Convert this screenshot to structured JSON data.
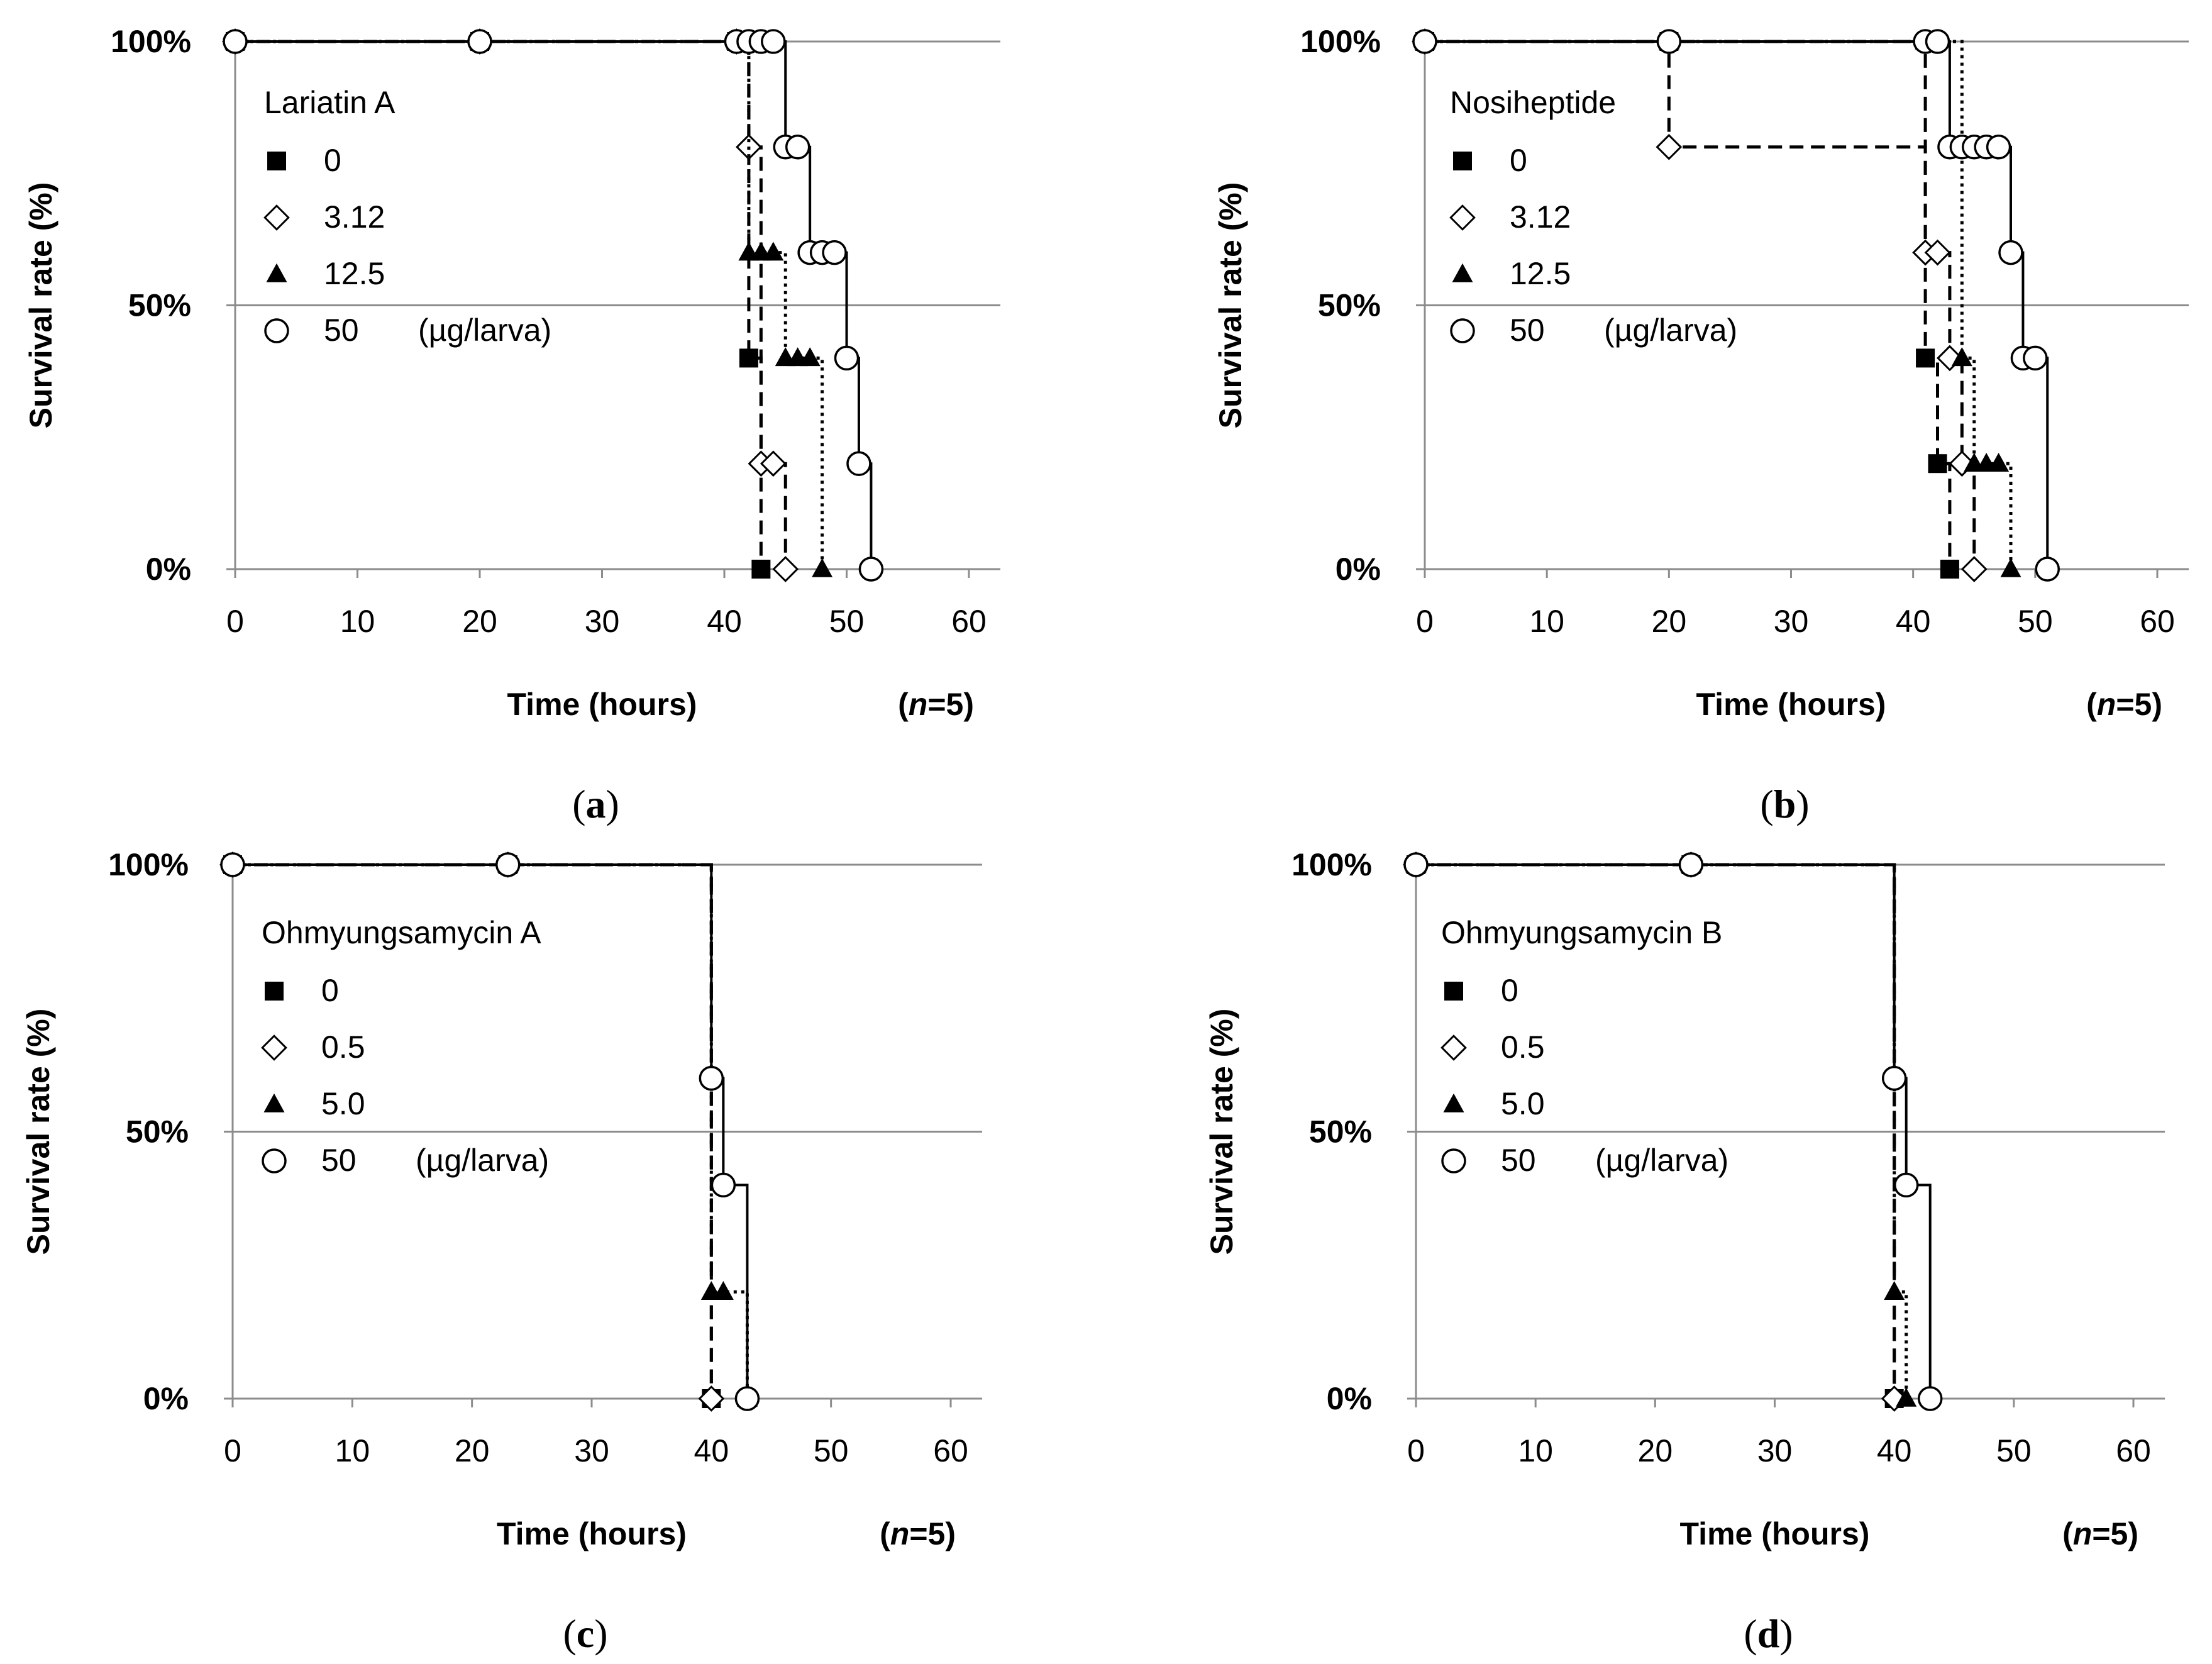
{
  "chart_data": [
    {
      "type": "line",
      "panel_label": "a",
      "legend_title": "Lariatin A",
      "legend_unit": "(µg/larva)",
      "xlabel": "Time (hours)",
      "ylabel": "Survival rate (%)",
      "n_label": "=5",
      "xlim": [
        0,
        60
      ],
      "ylim": [
        0,
        100
      ],
      "xticks": [
        "0",
        "10",
        "20",
        "30",
        "40",
        "50",
        "60"
      ],
      "yticks": [
        "0%",
        "50%",
        "100%"
      ],
      "series": [
        {
          "name": "0",
          "marker": "square-filled",
          "line": "dashed",
          "x": [
            0,
            20,
            41,
            42,
            43
          ],
          "y": [
            100,
            100,
            100,
            40,
            0
          ]
        },
        {
          "name": "3.12",
          "marker": "diamond-open",
          "line": "dashed",
          "x": [
            0,
            20,
            41,
            42,
            43,
            44,
            45
          ],
          "y": [
            100,
            100,
            100,
            80,
            20,
            20,
            0
          ]
        },
        {
          "name": "12.5",
          "marker": "triangle-filled",
          "line": "dotted",
          "x": [
            0,
            20,
            41,
            42,
            43,
            44,
            45,
            46,
            47,
            48
          ],
          "y": [
            100,
            100,
            100,
            60,
            60,
            60,
            40,
            40,
            40,
            0
          ]
        },
        {
          "name": "50",
          "marker": "circle-open",
          "line": "solid",
          "x": [
            0,
            20,
            41,
            42,
            43,
            44,
            45,
            46,
            47,
            48,
            49,
            50,
            51,
            52
          ],
          "y": [
            100,
            100,
            100,
            100,
            100,
            100,
            80,
            80,
            60,
            60,
            60,
            40,
            20,
            0
          ]
        }
      ]
    },
    {
      "type": "line",
      "panel_label": "b",
      "legend_title": "Nosiheptide",
      "legend_unit": "(µg/larva)",
      "xlabel": "Time (hours)",
      "ylabel": "Survival rate (%)",
      "n_label": "=5",
      "xlim": [
        0,
        60
      ],
      "ylim": [
        0,
        100
      ],
      "xticks": [
        "0",
        "10",
        "20",
        "30",
        "40",
        "50",
        "60"
      ],
      "yticks": [
        "0%",
        "50%",
        "100%"
      ],
      "series": [
        {
          "name": "0",
          "marker": "square-filled",
          "line": "dashed",
          "x": [
            0,
            20,
            41,
            42,
            43
          ],
          "y": [
            100,
            100,
            40,
            20,
            0
          ]
        },
        {
          "name": "3.12",
          "marker": "diamond-open",
          "line": "dashed",
          "x": [
            0,
            20,
            41,
            42,
            43,
            44,
            45
          ],
          "y": [
            100,
            80,
            60,
            60,
            40,
            20,
            0
          ]
        },
        {
          "name": "12.5",
          "marker": "triangle-filled",
          "line": "dotted",
          "x": [
            0,
            20,
            41,
            44,
            45,
            46,
            47,
            48
          ],
          "y": [
            100,
            100,
            100,
            40,
            20,
            20,
            20,
            0
          ]
        },
        {
          "name": "50",
          "marker": "circle-open",
          "line": "solid",
          "x": [
            0,
            20,
            41,
            42,
            43,
            44,
            45,
            46,
            47,
            48,
            49,
            50,
            51
          ],
          "y": [
            100,
            100,
            100,
            100,
            80,
            80,
            80,
            80,
            80,
            60,
            40,
            40,
            0
          ]
        }
      ]
    },
    {
      "type": "line",
      "panel_label": "c",
      "legend_title": "Ohmyungsamycin A",
      "legend_unit": "(µg/larva)",
      "xlabel": "Time (hours)",
      "ylabel": "Survival rate (%)",
      "n_label": "=5",
      "xlim": [
        0,
        60
      ],
      "ylim": [
        0,
        100
      ],
      "xticks": [
        "0",
        "10",
        "20",
        "30",
        "40",
        "50",
        "60"
      ],
      "yticks": [
        "0%",
        "50%",
        "100%"
      ],
      "series": [
        {
          "name": "0",
          "marker": "square-filled",
          "line": "dashed",
          "x": [
            0,
            23,
            40
          ],
          "y": [
            100,
            100,
            0
          ]
        },
        {
          "name": "0.5",
          "marker": "diamond-open",
          "line": "dashed",
          "x": [
            0,
            23,
            40
          ],
          "y": [
            100,
            100,
            0
          ]
        },
        {
          "name": "5.0",
          "marker": "triangle-filled",
          "line": "dotted",
          "x": [
            0,
            23,
            40,
            41,
            43
          ],
          "y": [
            100,
            100,
            20,
            20,
            0
          ]
        },
        {
          "name": "50",
          "marker": "circle-open",
          "line": "solid",
          "x": [
            0,
            23,
            40,
            41,
            43
          ],
          "y": [
            100,
            100,
            60,
            40,
            0
          ]
        }
      ]
    },
    {
      "type": "line",
      "panel_label": "d",
      "legend_title": "Ohmyungsamycin B",
      "legend_unit": "(µg/larva)",
      "xlabel": "Time (hours)",
      "ylabel": "Survival rate (%)",
      "n_label": "=5",
      "xlim": [
        0,
        60
      ],
      "ylim": [
        0,
        100
      ],
      "xticks": [
        "0",
        "10",
        "20",
        "30",
        "40",
        "50",
        "60"
      ],
      "yticks": [
        "0%",
        "50%",
        "100%"
      ],
      "series": [
        {
          "name": "0",
          "marker": "square-filled",
          "line": "dashed",
          "x": [
            0,
            23,
            40
          ],
          "y": [
            100,
            100,
            0
          ]
        },
        {
          "name": "0.5",
          "marker": "diamond-open",
          "line": "dashed",
          "x": [
            0,
            23,
            40
          ],
          "y": [
            100,
            100,
            0
          ]
        },
        {
          "name": "5.0",
          "marker": "triangle-filled",
          "line": "dotted",
          "x": [
            0,
            23,
            40,
            41
          ],
          "y": [
            100,
            100,
            20,
            0
          ]
        },
        {
          "name": "50",
          "marker": "circle-open",
          "line": "solid",
          "x": [
            0,
            23,
            40,
            41,
            43
          ],
          "y": [
            100,
            100,
            60,
            40,
            0
          ]
        }
      ]
    }
  ]
}
